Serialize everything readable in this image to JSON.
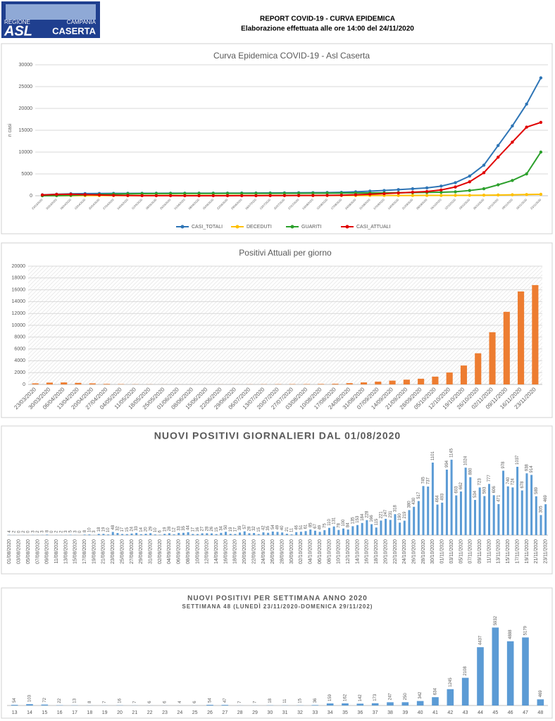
{
  "header": {
    "logo": {
      "region": "REGIONE",
      "campania": "CAMPANIA",
      "asl": "ASL",
      "caserta": "CASERTA"
    },
    "title": "REPORT COVID-19 - CURVA EPIDEMICA",
    "subtitle": "Elaborazione effettuata alle ore 14:00 del 24/11/2020"
  },
  "chart_data": [
    {
      "type": "line",
      "title": "Curva Epidemica COVID-19 - Asl Caserta",
      "y_label": "n casi",
      "categories": [
        "23/03/2020",
        "30/03/2020",
        "06/04/2020",
        "13/04/2020",
        "20/04/2020",
        "27/04/2020",
        "04/05/2020",
        "11/05/2020",
        "18/05/2020",
        "25/05/2020",
        "01/06/2020",
        "08/06/2020",
        "15/06/2020",
        "22/06/2020",
        "29/06/2020",
        "06/07/2020",
        "13/07/2020",
        "20/07/2020",
        "27/07/2020",
        "03/08/2020",
        "10/08/2020",
        "17/08/2020",
        "24/08/2020",
        "31/08/2020",
        "07/09/2020",
        "14/09/2020",
        "21/09/2020",
        "28/09/2020",
        "05/10/2020",
        "12/10/2020",
        "19/10/2020",
        "26/10/2020",
        "02/11/2020",
        "09/11/2020",
        "16/11/2020",
        "23/11/2020"
      ],
      "ylim": [
        0,
        30000
      ],
      "yticks": [
        0,
        5000,
        10000,
        15000,
        20000,
        25000,
        30000
      ],
      "legend": "bottom",
      "series": [
        {
          "name": "CASI_TOTALI",
          "color": "#2e75b6",
          "values": [
            200,
            350,
            450,
            500,
            520,
            540,
            550,
            560,
            570,
            575,
            580,
            585,
            590,
            600,
            610,
            620,
            640,
            660,
            680,
            700,
            730,
            780,
            900,
            1050,
            1200,
            1400,
            1600,
            1800,
            2200,
            3000,
            4500,
            7000,
            11500,
            16000,
            21000,
            27000
          ]
        },
        {
          "name": "DECEDUTI",
          "color": "#ffc000",
          "values": [
            10,
            20,
            30,
            35,
            40,
            45,
            48,
            50,
            52,
            53,
            54,
            55,
            55,
            56,
            56,
            57,
            57,
            58,
            58,
            59,
            60,
            61,
            62,
            63,
            65,
            67,
            70,
            73,
            78,
            85,
            100,
            130,
            170,
            220,
            280,
            330
          ]
        },
        {
          "name": "GUARITI",
          "color": "#2ca02c",
          "values": [
            5,
            20,
            80,
            200,
            300,
            400,
            450,
            480,
            500,
            510,
            520,
            525,
            530,
            535,
            540,
            545,
            550,
            560,
            570,
            580,
            590,
            600,
            620,
            640,
            660,
            690,
            720,
            760,
            800,
            900,
            1200,
            1600,
            2500,
            3500,
            5000,
            10000
          ]
        },
        {
          "name": "CASI_ATTUALI",
          "color": "#e00000",
          "values": [
            185,
            310,
            340,
            265,
            180,
            95,
            52,
            30,
            18,
            12,
            6,
            5,
            5,
            9,
            14,
            18,
            33,
            42,
            52,
            61,
            80,
            119,
            218,
            347,
            475,
            643,
            810,
            967,
            1322,
            2015,
            3200,
            5270,
            8830,
            12280,
            15720,
            16800
          ]
        }
      ]
    },
    {
      "type": "bar",
      "title": "Positivi Attuali per giorno",
      "color": "#ed7d31",
      "categories": [
        "23/03/2020",
        "30/03/2020",
        "06/04/2020",
        "13/04/2020",
        "20/04/2020",
        "27/04/2020",
        "04/05/2020",
        "11/05/2020",
        "18/05/2020",
        "25/05/2020",
        "01/06/2020",
        "08/06/2020",
        "15/06/2020",
        "22/06/2020",
        "29/06/2020",
        "06/07/2020",
        "13/07/2020",
        "20/07/2020",
        "27/07/2020",
        "03/08/2020",
        "10/08/2020",
        "17/08/2020",
        "24/08/2020",
        "31/08/2020",
        "07/09/2020",
        "14/09/2020",
        "21/09/2020",
        "28/09/2020",
        "05/10/2020",
        "12/10/2020",
        "19/10/2020",
        "26/10/2020",
        "02/11/2020",
        "09/11/2020",
        "16/11/2020",
        "23/11/2020"
      ],
      "values": [
        185,
        310,
        340,
        265,
        180,
        95,
        52,
        30,
        18,
        12,
        6,
        5,
        5,
        9,
        14,
        18,
        33,
        42,
        52,
        61,
        80,
        119,
        218,
        347,
        475,
        643,
        810,
        967,
        1322,
        2015,
        3200,
        5270,
        8830,
        12280,
        15720,
        16800
      ],
      "ylim": [
        0,
        20000
      ],
      "yticks": [
        0,
        2000,
        4000,
        6000,
        8000,
        10000,
        12000,
        14000,
        16000,
        18000,
        20000
      ]
    },
    {
      "type": "bar",
      "title": "NUOVI POSITIVI GIORNALIERI DAL 01/08/2020",
      "color": "#5b9bd5",
      "categories": [
        "01/08/2020",
        null,
        "03/08/2020",
        null,
        "05/08/2020",
        null,
        "07/08/2020",
        null,
        "09/08/2020",
        null,
        "11/08/2020",
        null,
        "13/08/2020",
        null,
        "15/08/2020",
        null,
        "17/08/2020",
        null,
        "19/08/2020",
        null,
        "21/08/2020",
        null,
        "23/08/2020",
        null,
        "25/08/2020",
        null,
        "27/08/2020",
        null,
        "29/08/2020",
        null,
        "31/08/2020",
        null,
        "02/09/2020",
        null,
        "04/09/2020",
        null,
        "06/09/2020",
        null,
        "08/09/2020",
        null,
        "10/09/2020",
        null,
        "12/09/2020",
        null,
        "14/09/2020",
        null,
        "16/09/2020",
        null,
        "18/09/2020",
        null,
        "20/09/2020",
        null,
        "22/09/2020",
        null,
        "24/09/2020",
        null,
        "26/09/2020",
        null,
        "28/09/2020",
        null,
        "30/09/2020",
        null,
        "02/10/2020",
        null,
        "04/10/2020",
        null,
        "06/10/2020",
        null,
        "08/10/2020",
        null,
        "10/10/2020",
        null,
        "12/10/2020",
        null,
        "14/10/2020",
        null,
        "16/10/2020",
        null,
        "18/10/2020",
        null,
        "20/10/2020",
        null,
        "22/10/2020",
        null,
        "24/10/2020",
        null,
        "26/10/2020",
        null,
        "28/10/2020",
        null,
        "30/10/2020",
        null,
        "01/11/2020",
        null,
        "03/11/2020",
        null,
        "05/11/2020",
        null,
        "07/11/2020",
        null,
        "09/11/2020",
        null,
        "11/11/2020",
        null,
        "13/11/2020",
        null,
        "15/11/2020",
        null,
        "17/11/2020",
        null,
        "19/11/2020",
        null,
        "21/11/2020",
        null,
        "23/11/2020"
      ],
      "values": [
        4,
        2,
        0,
        2,
        0,
        3,
        2,
        3,
        8,
        0,
        2,
        2,
        3,
        5,
        3,
        0,
        8,
        10,
        3,
        18,
        19,
        10,
        48,
        32,
        17,
        15,
        24,
        33,
        14,
        20,
        29,
        10,
        6,
        19,
        28,
        12,
        33,
        35,
        44,
        17,
        16,
        27,
        28,
        26,
        15,
        34,
        50,
        19,
        17,
        39,
        57,
        28,
        32,
        15,
        42,
        35,
        54,
        49,
        40,
        21,
        11,
        46,
        51,
        61,
        85,
        67,
        49,
        75,
        110,
        131,
        78,
        100,
        84,
        135,
        153,
        184,
        228,
        166,
        115,
        221,
        247,
        231,
        318,
        190,
        219,
        380,
        430,
        517,
        745,
        737,
        1101,
        464,
        493,
        994,
        1145,
        603,
        662,
        1024,
        880,
        534,
        723,
        593,
        777,
        606,
        471,
        978,
        740,
        724,
        1037,
        678,
        938,
        914,
        589,
        305,
        469
      ]
    },
    {
      "type": "bar",
      "title": "NUOVI POSITIVI PER SETTIMANA ANNO 2020",
      "subtitle": "SETTIMANA 48 (LUNEDÌ 23/11/2020-DOMENICA 29/11/202)",
      "color": "#5b9bd5",
      "categories": [
        "13",
        "14",
        "15",
        "16",
        "17",
        "18",
        "19",
        "20",
        "21",
        "22",
        "23",
        "24",
        "25",
        "26",
        "27",
        "28",
        "29",
        "30",
        "31",
        "32",
        "33",
        "34",
        "35",
        "36",
        "37",
        "38",
        "39",
        "40",
        "41",
        "42",
        "43",
        "44",
        "45",
        "46",
        "47",
        "48"
      ],
      "values": [
        54,
        103,
        72,
        22,
        13,
        8,
        7,
        16,
        7,
        6,
        6,
        4,
        6,
        54,
        47,
        7,
        7,
        18,
        11,
        15,
        36,
        159,
        162,
        142,
        173,
        247,
        250,
        342,
        634,
        1245,
        2108,
        4437,
        5932,
        4888,
        5179,
        469
      ]
    }
  ]
}
